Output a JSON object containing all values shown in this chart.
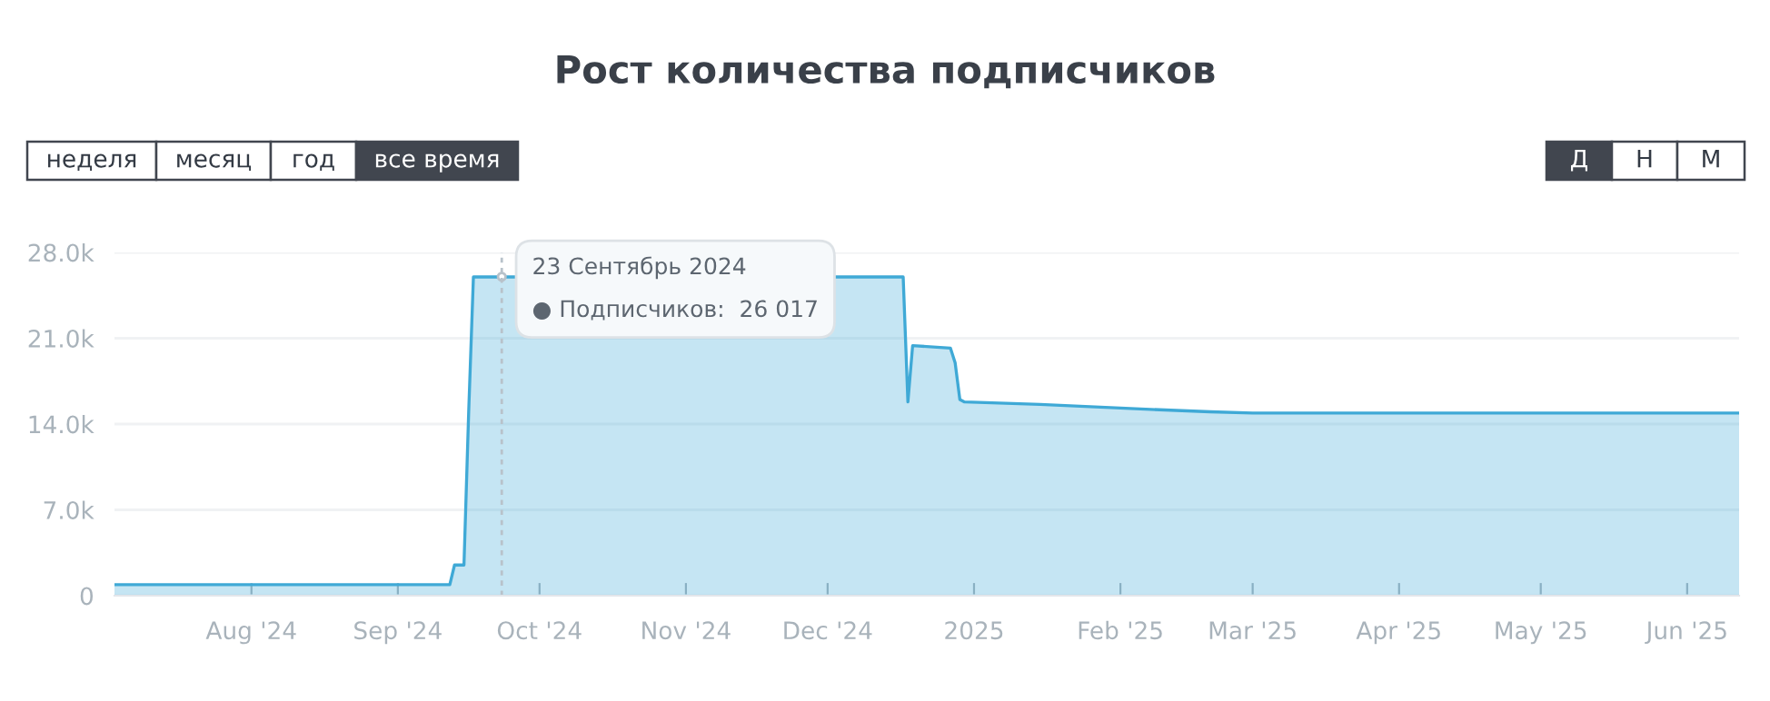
{
  "chart_data": {
    "type": "area",
    "title": "Рост количества подписчиков",
    "x": [
      "2024-07-03",
      "2024-09-12",
      "2024-09-13",
      "2024-09-15",
      "2024-09-16",
      "2024-09-17",
      "2024-12-17",
      "2024-12-18",
      "2024-12-19",
      "2024-12-27",
      "2024-12-28",
      "2024-12-29",
      "2024-12-30",
      "2025-01-15",
      "2025-02-01",
      "2025-02-20",
      "2025-03-01",
      "2025-06-12"
    ],
    "series": [
      {
        "color": "#3fa9d6",
        "values": [
          900,
          900,
          2500,
          2500,
          15000,
          26000,
          26000,
          15800,
          20400,
          20200,
          19000,
          16000,
          15800,
          15600,
          15300,
          15000,
          14900,
          14900
        ]
      }
    ],
    "xlim": [
      "2024-07-03",
      "2025-06-12"
    ],
    "xticks": [
      {
        "value": "2024-08-01",
        "label": "Aug '24"
      },
      {
        "value": "2024-09-01",
        "label": "Sep '24"
      },
      {
        "value": "2024-10-01",
        "label": "Oct '24"
      },
      {
        "value": "2024-11-01",
        "label": "Nov '24"
      },
      {
        "value": "2024-12-01",
        "label": "Dec '24"
      },
      {
        "value": "2025-01-01",
        "label": "2025"
      },
      {
        "value": "2025-02-01",
        "label": "Feb '25"
      },
      {
        "value": "2025-03-01",
        "label": "Mar '25"
      },
      {
        "value": "2025-04-01",
        "label": "Apr '25"
      },
      {
        "value": "2025-05-01",
        "label": "May '25"
      },
      {
        "value": "2025-06-01",
        "label": "Jun '25"
      }
    ],
    "ylim": [
      0,
      28000
    ],
    "yticks": [
      0,
      {
        "value": 7000,
        "label": "7.0k"
      },
      {
        "value": 14000,
        "label": "14.0k"
      },
      {
        "value": 21000,
        "label": "21.0k"
      },
      {
        "value": 28000,
        "label": "28.0k"
      }
    ],
    "grid": "y",
    "ref_lines": [
      {
        "axis": "x",
        "value": "2024-09-23",
        "color": "#b8c2ca",
        "line_style": "dotted"
      }
    ],
    "annotations": [
      "неделя",
      "месяц",
      "год",
      "все время",
      "Д",
      "Н",
      "М",
      {
        "text": "23 Сентябрь 2024\n● Подписчиков:  26 017",
        "x": "2024-09-23",
        "y": 26017
      }
    ]
  }
}
